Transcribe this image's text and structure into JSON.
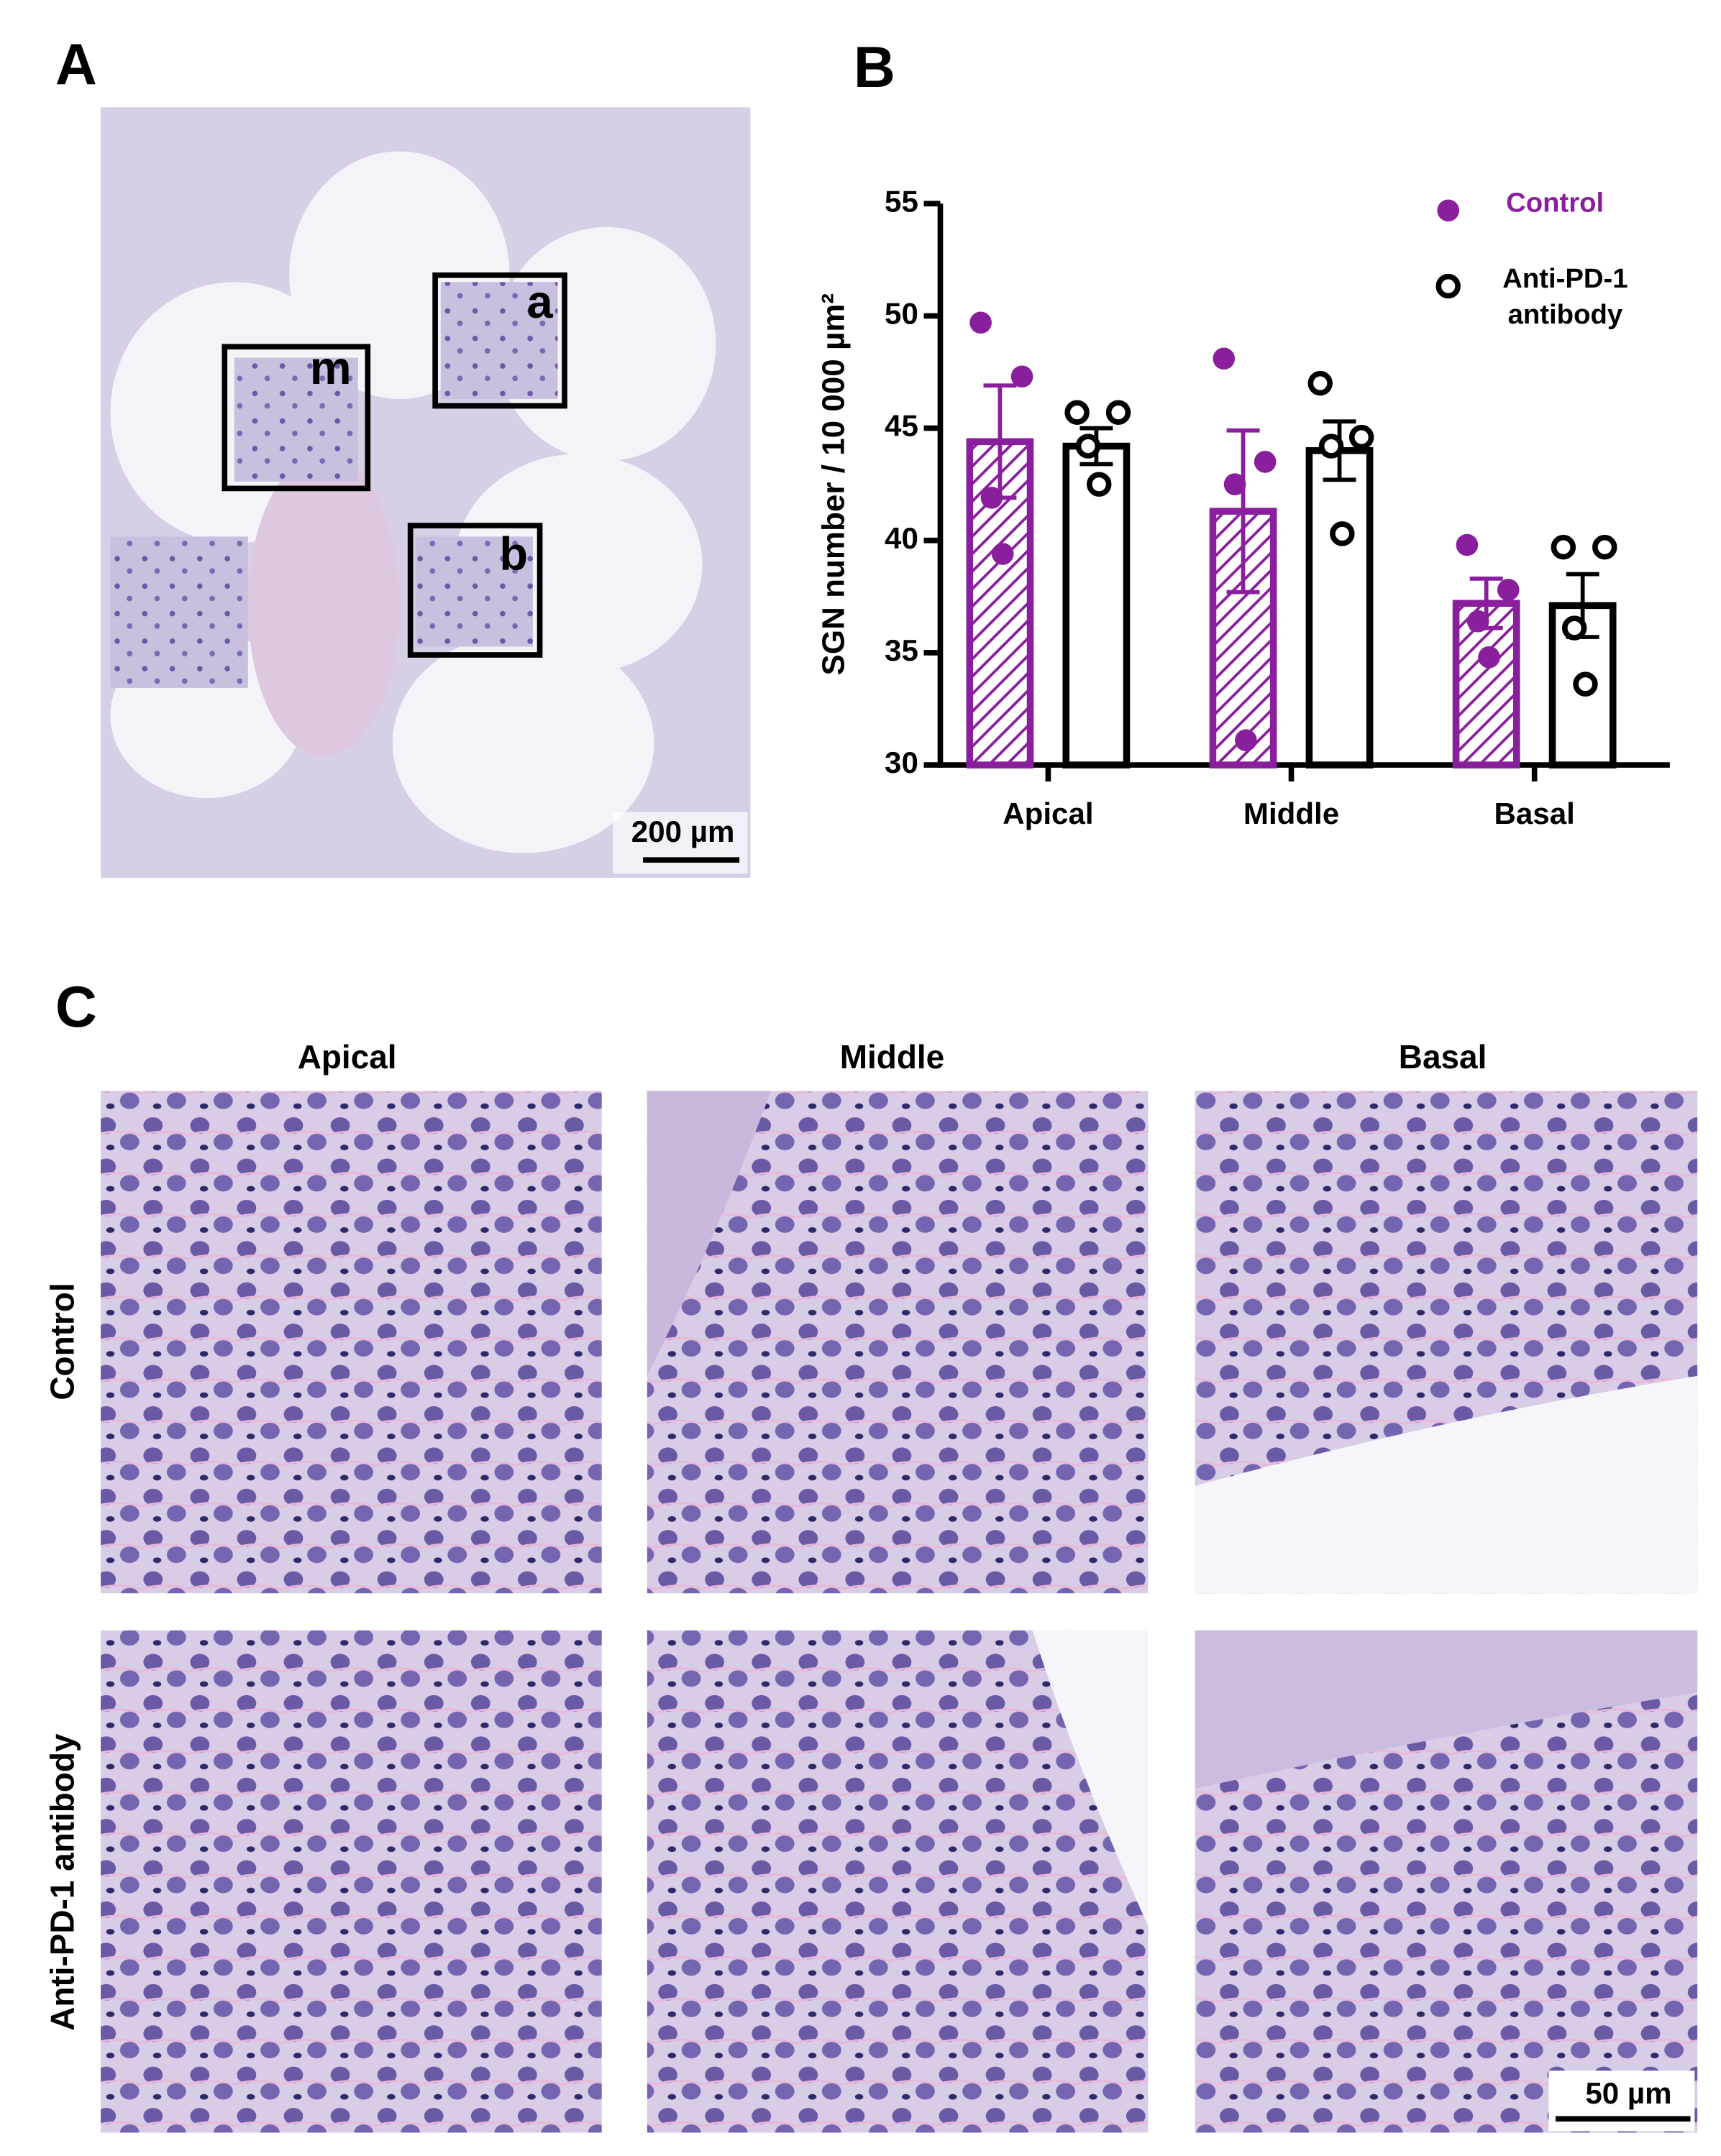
{
  "panel_a": {
    "label": "A",
    "boxes": [
      "m",
      "a",
      "b"
    ],
    "scale_bar": "200 µm"
  },
  "chart_data": {
    "type": "bar",
    "panel_label": "B",
    "ylabel": "SGN number / 10 000 µm²",
    "categories": [
      "Apical",
      "Middle",
      "Basal"
    ],
    "ylim": [
      30,
      55
    ],
    "yticks": [
      30,
      35,
      40,
      45,
      50,
      55
    ],
    "series": [
      {
        "name": "Control",
        "color": "#8a1f9e",
        "hatch": true,
        "marker": "filled",
        "values": [
          44.4,
          41.3,
          37.2
        ],
        "errors": [
          2.5,
          3.6,
          1.1
        ],
        "points": [
          [
            49.7,
            47.3,
            41.9,
            39.4
          ],
          [
            48.1,
            43.5,
            42.5,
            31.1
          ],
          [
            39.8,
            37.8,
            36.4,
            34.8
          ]
        ]
      },
      {
        "name": "Anti-PD-1 antibody",
        "color": "#000000",
        "hatch": false,
        "marker": "open",
        "values": [
          44.2,
          44.0,
          37.1
        ],
        "errors": [
          0.8,
          1.3,
          1.4
        ],
        "points": [
          [
            45.7,
            45.7,
            44.2,
            42.5
          ],
          [
            47.0,
            44.6,
            44.2,
            40.3
          ],
          [
            39.7,
            39.7,
            36.1,
            33.6
          ]
        ]
      }
    ]
  },
  "panel_c": {
    "label": "C",
    "columns": [
      "Apical",
      "Middle",
      "Basal"
    ],
    "rows": [
      "Control",
      "Anti-PD-1 antibody"
    ],
    "scale_bar": "50 µm"
  }
}
